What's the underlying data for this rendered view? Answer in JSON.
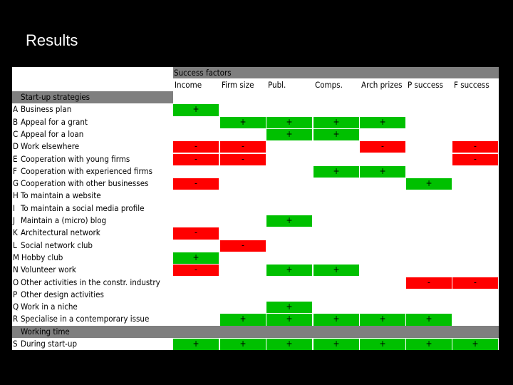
{
  "title": "Results",
  "table": {
    "header_group": "Success factors",
    "columns": [
      "Income",
      "Firm size",
      "Publ.",
      "Comps.",
      "Arch prizes",
      "P success",
      "F success"
    ],
    "sections": [
      {
        "label": "Start-up strategies",
        "after_row": -1
      },
      {
        "label": "Working time",
        "after_row": 17
      }
    ],
    "rows": [
      {
        "code": "A",
        "label": "Business plan",
        "cells": [
          "+",
          "",
          "",
          "",
          "",
          "",
          ""
        ]
      },
      {
        "code": "B",
        "label": "Appeal for a grant",
        "cells": [
          "",
          "+",
          "+",
          "+",
          "+",
          "",
          ""
        ]
      },
      {
        "code": "C",
        "label": "Appeal for a loan",
        "cells": [
          "",
          "",
          "+",
          "+",
          "",
          "",
          ""
        ]
      },
      {
        "code": "D",
        "label": "Work elsewhere",
        "cells": [
          "-",
          "-",
          "",
          "",
          "-",
          "",
          "-"
        ]
      },
      {
        "code": "E",
        "label": "Cooperation with young firms",
        "cells": [
          "-",
          "-",
          "",
          "",
          "",
          "",
          "-"
        ]
      },
      {
        "code": "F",
        "label": "Cooperation with experienced firms",
        "cells": [
          "",
          "",
          "",
          "+",
          "+",
          "",
          ""
        ]
      },
      {
        "code": "G",
        "label": "Cooperation with other businesses",
        "cells": [
          "-",
          "",
          "",
          "",
          "",
          "+",
          ""
        ]
      },
      {
        "code": "H",
        "label": "To maintain a website",
        "cells": [
          "",
          "",
          "",
          "",
          "",
          "",
          ""
        ]
      },
      {
        "code": "I",
        "label": " To maintain a social media profile",
        "cells": [
          "",
          "",
          "",
          "",
          "",
          "",
          ""
        ]
      },
      {
        "code": "J",
        "label": " Maintain a (micro) blog",
        "cells": [
          "",
          "",
          "+",
          "",
          "",
          "",
          ""
        ]
      },
      {
        "code": "K",
        "label": "Architectural network",
        "cells": [
          "-",
          "",
          "",
          "",
          "",
          "",
          ""
        ]
      },
      {
        "code": "L",
        "label": "Social network club",
        "cells": [
          "",
          "-",
          "",
          "",
          "",
          "",
          ""
        ]
      },
      {
        "code": "M",
        "label": "Hobby club",
        "cells": [
          "+",
          "",
          "",
          "",
          "",
          "",
          ""
        ]
      },
      {
        "code": "N",
        "label": "Volunteer work",
        "cells": [
          "-",
          "",
          "+",
          "+",
          "",
          "",
          ""
        ]
      },
      {
        "code": "O",
        "label": "Other activities in the constr. industry",
        "cells": [
          "",
          "",
          "",
          "",
          "",
          "-",
          "-"
        ]
      },
      {
        "code": "P",
        "label": "Other design activities",
        "cells": [
          "",
          "",
          "",
          "",
          "",
          "",
          ""
        ]
      },
      {
        "code": "Q",
        "label": "Work in a niche",
        "cells": [
          "",
          "",
          "+",
          "",
          "",
          "",
          ""
        ]
      },
      {
        "code": "R",
        "label": "Specialise in a contemporary issue",
        "cells": [
          "",
          "+",
          "+",
          "+",
          "+",
          "+",
          ""
        ]
      },
      {
        "code": "S",
        "label": "During start-up",
        "cells": [
          "+",
          "+",
          "+",
          "+",
          "+",
          "+",
          "+"
        ]
      }
    ],
    "colors": {
      "positive": "#00c000",
      "negative": "#ff0000",
      "band": "#7f7f7f"
    }
  }
}
